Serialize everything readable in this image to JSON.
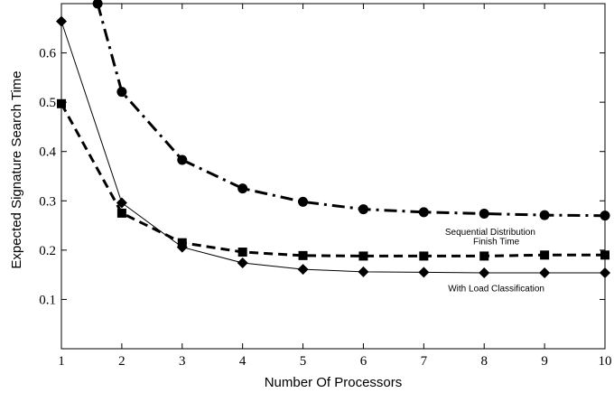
{
  "chart_data": {
    "type": "line",
    "title": "",
    "xlabel": "Number Of Processors",
    "ylabel": "Expected Signature Search Time",
    "xlim": [
      1,
      10
    ],
    "ylim": [
      0,
      0.7
    ],
    "x_ticks": [
      "1",
      "2",
      "3",
      "4",
      "5",
      "6",
      "7",
      "8",
      "9",
      "10"
    ],
    "y_ticks": [
      "0.1",
      "0.2",
      "0.3",
      "0.4",
      "0.5",
      "0.6"
    ],
    "grid": false,
    "series": [
      {
        "name": "Finish Time",
        "marker": "circle",
        "line_style": "dash-dot",
        "x": [
          1.6,
          2,
          3,
          4,
          5,
          6,
          7,
          8,
          9,
          10
        ],
        "values": [
          0.7,
          0.521,
          0.383,
          0.325,
          0.298,
          0.283,
          0.277,
          0.274,
          0.271,
          0.27
        ]
      },
      {
        "name": "Sequential Distribution",
        "marker": "square",
        "line_style": "dashed",
        "x": [
          1,
          2,
          3,
          4,
          5,
          6,
          7,
          8,
          9,
          10
        ],
        "values": [
          0.497,
          0.275,
          0.215,
          0.196,
          0.189,
          0.188,
          0.188,
          0.188,
          0.19,
          0.19
        ]
      },
      {
        "name": "With Load Classification",
        "marker": "diamond",
        "line_style": "solid",
        "x": [
          1,
          2,
          3,
          4,
          5,
          6,
          7,
          8,
          9,
          10
        ],
        "values": [
          0.664,
          0.296,
          0.206,
          0.174,
          0.161,
          0.156,
          0.155,
          0.154,
          0.154,
          0.154
        ]
      }
    ],
    "annotations": [
      {
        "text": "Finish Time",
        "series": "Finish Time"
      },
      {
        "text": "Sequential Distribution",
        "series": "Sequential Distribution"
      },
      {
        "text": "With Load Classification",
        "series": "With Load Classification"
      }
    ]
  }
}
